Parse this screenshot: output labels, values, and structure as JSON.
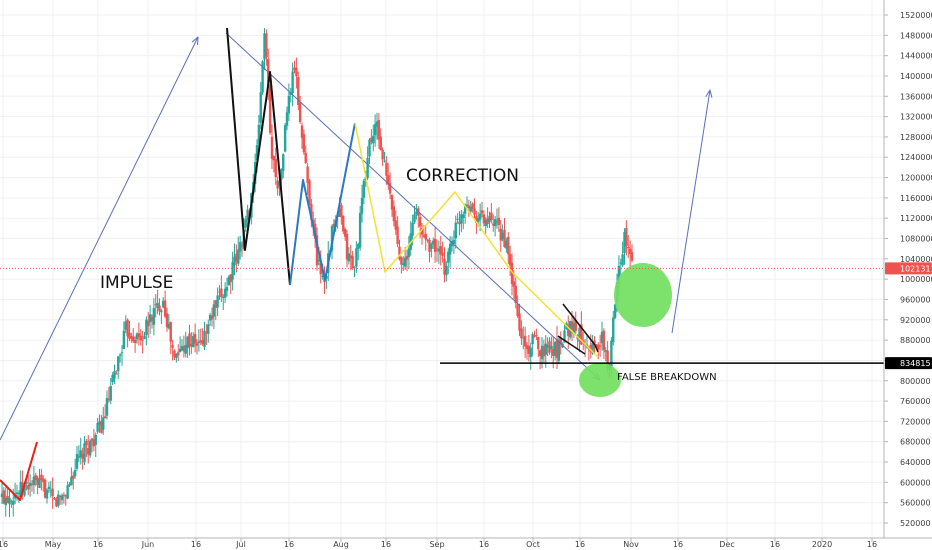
{
  "chart_data": {
    "type": "candlestick",
    "title": "",
    "xlabel": "",
    "ylabel": "",
    "ylim": [
      510000,
      1530000
    ],
    "grid": true,
    "x_ticks": [
      "16",
      "May",
      "16",
      "Jun",
      "16",
      "Jul",
      "16",
      "Aug",
      "16",
      "Sep",
      "16",
      "Oct",
      "16",
      "Nov",
      "16",
      "Dec",
      "16",
      "2020",
      "16"
    ],
    "y_ticks": [
      520000,
      560000,
      600000,
      640000,
      680000,
      720000,
      760000,
      800000,
      840000,
      880000,
      920000,
      960000,
      1000000,
      1040000,
      1080000,
      1120000,
      1160000,
      1200000,
      1240000,
      1280000,
      1320000,
      1360000,
      1400000,
      1440000,
      1480000,
      1520000
    ],
    "current_price": {
      "label": "1021311",
      "value": 1021311,
      "color": "#ef5350"
    },
    "level_price": {
      "label": "834815",
      "value": 834815,
      "color": "#000000"
    },
    "annotations": {
      "impulse": "IMPULSE",
      "correction": "CORRECTION",
      "false_breakdown": "FALSE BREAKDOWN"
    },
    "close_path": [
      [
        0,
        570000
      ],
      [
        4,
        580000
      ],
      [
        8,
        600000
      ],
      [
        11,
        590000
      ],
      [
        14,
        560000
      ],
      [
        17,
        580000
      ],
      [
        20,
        640000
      ],
      [
        24,
        680000
      ],
      [
        27,
        720000
      ],
      [
        30,
        810000
      ],
      [
        33,
        900000
      ],
      [
        37,
        880000
      ],
      [
        40,
        930000
      ],
      [
        43,
        960000
      ],
      [
        46,
        840000
      ],
      [
        49,
        880000
      ],
      [
        53,
        870000
      ],
      [
        56,
        930000
      ],
      [
        60,
        990000
      ],
      [
        63,
        1050000
      ],
      [
        66,
        1140000
      ],
      [
        68,
        1250000
      ],
      [
        70,
        1490000
      ],
      [
        72,
        1240000
      ],
      [
        74,
        1180000
      ],
      [
        76,
        1330000
      ],
      [
        78,
        1420000
      ],
      [
        80,
        1280000
      ],
      [
        82,
        1160000
      ],
      [
        84,
        1040000
      ],
      [
        86,
        1000000
      ],
      [
        88,
        1090000
      ],
      [
        90,
        1130000
      ],
      [
        92,
        1050000
      ],
      [
        94,
        1020000
      ],
      [
        96,
        1150000
      ],
      [
        98,
        1270000
      ],
      [
        100,
        1300000
      ],
      [
        102,
        1220000
      ],
      [
        104,
        1140000
      ],
      [
        106,
        1050000
      ],
      [
        108,
        1030000
      ],
      [
        110,
        1140000
      ],
      [
        112,
        1090000
      ],
      [
        114,
        1070000
      ],
      [
        116,
        1060000
      ],
      [
        118,
        1020000
      ],
      [
        120,
        1080000
      ],
      [
        122,
        1120000
      ],
      [
        124,
        1160000
      ],
      [
        126,
        1130000
      ],
      [
        128,
        1120000
      ],
      [
        130,
        1110000
      ],
      [
        132,
        1100000
      ],
      [
        134,
        1080000
      ],
      [
        136,
        1000000
      ],
      [
        138,
        900000
      ],
      [
        140,
        860000
      ],
      [
        142,
        880000
      ],
      [
        144,
        860000
      ],
      [
        146,
        870000
      ],
      [
        148,
        860000
      ],
      [
        150,
        900000
      ],
      [
        152,
        910000
      ],
      [
        154,
        890000
      ],
      [
        156,
        880000
      ],
      [
        158,
        860000
      ],
      [
        160,
        880000
      ],
      [
        162,
        820000
      ],
      [
        164,
        1010000
      ],
      [
        166,
        1080000
      ],
      [
        168,
        1030000
      ]
    ],
    "colors": {
      "up": "#26a69a",
      "down": "#ef5350"
    }
  }
}
